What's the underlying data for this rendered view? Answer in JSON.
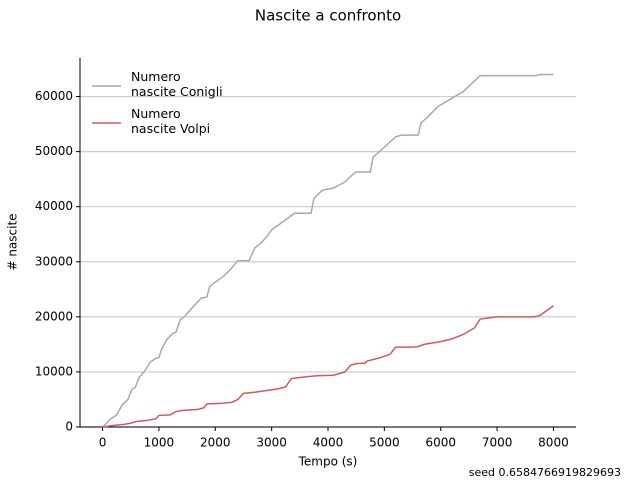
{
  "chart_data": {
    "type": "line",
    "title": "Nascite a confronto",
    "x_label": "Tempo (s)",
    "y_label": "# nascite",
    "footer": "seed 0.6584766919829693",
    "xlim": [
      -400,
      8400
    ],
    "ylim": [
      0,
      67000
    ],
    "xticks": [
      0,
      1000,
      2000,
      3000,
      4000,
      5000,
      6000,
      7000,
      8000
    ],
    "yticks": [
      0,
      10000,
      20000,
      30000,
      40000,
      50000,
      60000
    ],
    "grid": "y",
    "legend": "upper left",
    "series": [
      {
        "name": "Numero\n nascite Conigli",
        "color": "#a9a9a9",
        "x": [
          0,
          150,
          250,
          350,
          450,
          520,
          580,
          650,
          750,
          850,
          950,
          1000,
          1050,
          1150,
          1250,
          1300,
          1380,
          1450,
          1550,
          1650,
          1750,
          1850,
          1900,
          2000,
          2150,
          2250,
          2400,
          2600,
          2700,
          2800,
          2900,
          3000,
          3300,
          3400,
          3700,
          3750,
          3900,
          4100,
          4300,
          4400,
          4500,
          4750,
          4800,
          5000,
          5200,
          5300,
          5600,
          5650,
          5800,
          5950,
          6200,
          6400,
          6700,
          7700,
          7750,
          8000
        ],
        "values": [
          0,
          1500,
          2200,
          4000,
          5000,
          6800,
          7200,
          9000,
          10200,
          11800,
          12500,
          12600,
          14200,
          16000,
          17000,
          17200,
          19500,
          20000,
          21200,
          22300,
          23400,
          23600,
          25500,
          26300,
          27400,
          28400,
          30200,
          30200,
          32500,
          33300,
          34400,
          35800,
          38000,
          38800,
          38800,
          41500,
          43000,
          43400,
          44500,
          45500,
          46300,
          46300,
          49000,
          50800,
          52700,
          53000,
          53000,
          55200,
          56600,
          58200,
          59700,
          60900,
          63800,
          63800,
          64000,
          64000
        ]
      },
      {
        "name": "Numero\n nascite Volpi",
        "color": "#cd5c5c",
        "x": [
          0,
          200,
          400,
          500,
          600,
          800,
          950,
          1000,
          1200,
          1300,
          1400,
          1700,
          1800,
          1850,
          2100,
          2300,
          2400,
          2500,
          2700,
          2900,
          3100,
          3250,
          3350,
          3600,
          3800,
          4100,
          4300,
          4400,
          4500,
          4650,
          4700,
          4900,
          5100,
          5200,
          5500,
          5600,
          5700,
          6000,
          6200,
          6400,
          6600,
          6700,
          7000,
          7650,
          7750,
          8000
        ],
        "values": [
          0,
          300,
          500,
          700,
          1000,
          1200,
          1500,
          2100,
          2200,
          2800,
          3000,
          3200,
          3500,
          4200,
          4300,
          4500,
          5000,
          6100,
          6300,
          6600,
          6900,
          7300,
          8800,
          9100,
          9300,
          9400,
          10000,
          11200,
          11500,
          11600,
          12000,
          12500,
          13200,
          14500,
          14500,
          14600,
          15000,
          15500,
          16000,
          16800,
          18000,
          19600,
          20000,
          20000,
          20200,
          22000
        ]
      }
    ]
  }
}
